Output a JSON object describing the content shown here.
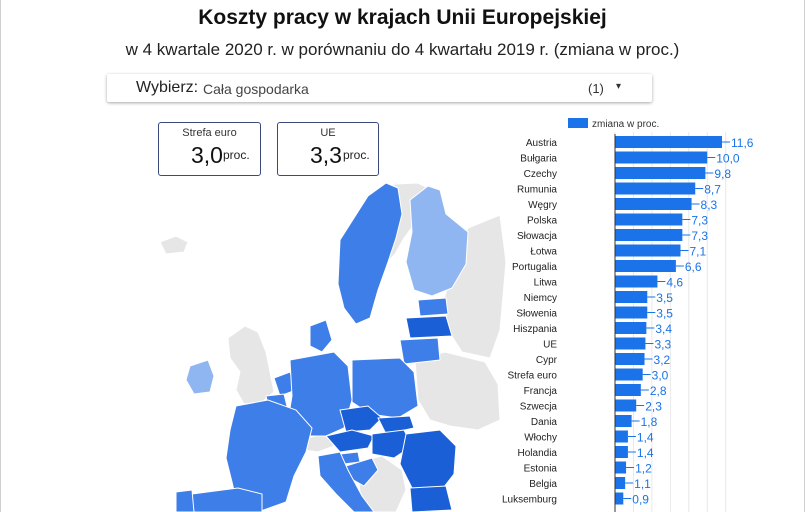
{
  "title": "Koszty pracy w krajach Unii Europejskiej",
  "subtitle": "w 4 kwartale 2020 r. w porównaniu do 4 kwartału 2019 r. (zmiana w proc.)",
  "filter": {
    "label": "Wybierz",
    "separator": ":",
    "value": "Cała gospodarka",
    "count": "(1)",
    "arrow": "▾"
  },
  "kpis": {
    "eurozone": {
      "label": "Strefa euro",
      "value": "3,0",
      "unit": "proc."
    },
    "eu": {
      "label": "UE",
      "value": "3,3",
      "unit": "proc."
    }
  },
  "colors": {
    "bar": "#1a73e8",
    "map_dark": "#1a5fd6",
    "map_mid": "#3d7ee8",
    "map_light": "#8fb6f0",
    "map_grey": "#e6e6e6"
  },
  "chart_data": {
    "type": "bar",
    "orientation": "horizontal",
    "legend": "zmiana w proc.",
    "legend_position": "top",
    "categories": [
      "Austria",
      "Bułgaria",
      "Czechy",
      "Rumunia",
      "Węgry",
      "Polska",
      "Słowacja",
      "Łotwa",
      "Portugalia",
      "Litwa",
      "Niemcy",
      "Słowenia",
      "Hiszpania",
      "UE",
      "Cypr",
      "Strefa euro",
      "Francja",
      "Szwecja",
      "Dania",
      "Włochy",
      "Holandia",
      "Estonia",
      "Belgia",
      "Luksemburg"
    ],
    "values": [
      11.6,
      10.0,
      9.8,
      8.7,
      8.3,
      7.3,
      7.3,
      7.1,
      6.6,
      4.6,
      3.5,
      3.5,
      3.4,
      3.3,
      3.2,
      3.0,
      2.8,
      2.3,
      1.8,
      1.4,
      1.4,
      1.2,
      1.1,
      0.9
    ],
    "value_labels": [
      "11,6",
      "10,0",
      "9,8",
      "8,7",
      "8,3",
      "7,3",
      "7,3",
      "7,1",
      "6,6",
      "4,6",
      "3,5",
      "3,5",
      "3,4",
      "3,3",
      "3,2",
      "3,0",
      "2,8",
      "2,3",
      "1,8",
      "1,4",
      "1,4",
      "1,2",
      "1,1",
      "0,9"
    ],
    "xlim": [
      0,
      12
    ]
  }
}
